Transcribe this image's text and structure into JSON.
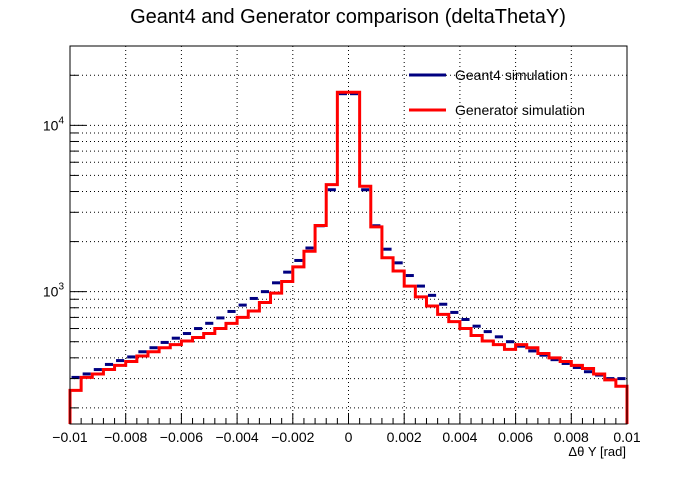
{
  "chart_data": {
    "type": "line",
    "title": "Geant4 and Generator comparison (deltaThetaY)",
    "xlabel": "Δθ Y [rad]",
    "ylabel": "",
    "xlim": [
      -0.01,
      0.01
    ],
    "ylim": [
      160,
      30000
    ],
    "yscale": "log",
    "grid": true,
    "legend_position": "top-right",
    "x_ticks": [
      -0.01,
      -0.008,
      -0.006,
      -0.004,
      -0.002,
      0,
      0.002,
      0.004,
      0.006,
      0.008,
      0.01
    ],
    "x_tick_labels": [
      "−0.01",
      "−0.008",
      "−0.006",
      "−0.004",
      "−0.002",
      "0",
      "0.002",
      "0.004",
      "0.006",
      "0.008",
      "0.01"
    ],
    "y_ticks": [
      1000,
      10000
    ],
    "y_tick_labels": [
      {
        "base": "10",
        "exp": "3"
      },
      {
        "base": "10",
        "exp": "4"
      }
    ],
    "bin_edges": [
      -0.01,
      -0.0096,
      -0.0092,
      -0.0088,
      -0.0084,
      -0.008,
      -0.0076,
      -0.0072,
      -0.0068,
      -0.0064,
      -0.006,
      -0.0056,
      -0.0052,
      -0.0048,
      -0.0044,
      -0.004,
      -0.0036,
      -0.0032,
      -0.0028,
      -0.0024,
      -0.002,
      -0.0016,
      -0.0012,
      -0.0008,
      -0.0004,
      0,
      0.0004,
      0.0008,
      0.0012,
      0.0016,
      0.002,
      0.0024,
      0.0028,
      0.0032,
      0.0036,
      0.004,
      0.0044,
      0.0048,
      0.0052,
      0.0056,
      0.006,
      0.0064,
      0.0068,
      0.0072,
      0.0076,
      0.008,
      0.0084,
      0.0088,
      0.0092,
      0.0096,
      0.01
    ],
    "series": [
      {
        "name": "Geant4 simulation",
        "color": "#000080",
        "style": "markers",
        "values": [
          305,
          320,
          340,
          365,
          385,
          405,
          435,
          460,
          495,
          525,
          560,
          600,
          645,
          695,
          760,
          830,
          910,
          1000,
          1130,
          1310,
          1540,
          1830,
          2490,
          4100,
          15500,
          15500,
          4100,
          2490,
          1800,
          1490,
          1250,
          1080,
          950,
          840,
          750,
          680,
          620,
          575,
          535,
          500,
          470,
          440,
          415,
          390,
          370,
          350,
          330,
          315,
          300,
          300
        ]
      },
      {
        "name": "Generator simulation",
        "color": "#ff0000",
        "style": "step",
        "values": [
          255,
          305,
          320,
          340,
          360,
          380,
          410,
          435,
          460,
          480,
          505,
          530,
          560,
          600,
          645,
          700,
          765,
          860,
          980,
          1150,
          1410,
          1750,
          2500,
          4400,
          15800,
          15800,
          4300,
          2450,
          1600,
          1330,
          1080,
          930,
          820,
          730,
          660,
          600,
          545,
          505,
          480,
          450,
          480,
          460,
          425,
          400,
          380,
          360,
          345,
          320,
          295,
          270
        ]
      }
    ]
  }
}
